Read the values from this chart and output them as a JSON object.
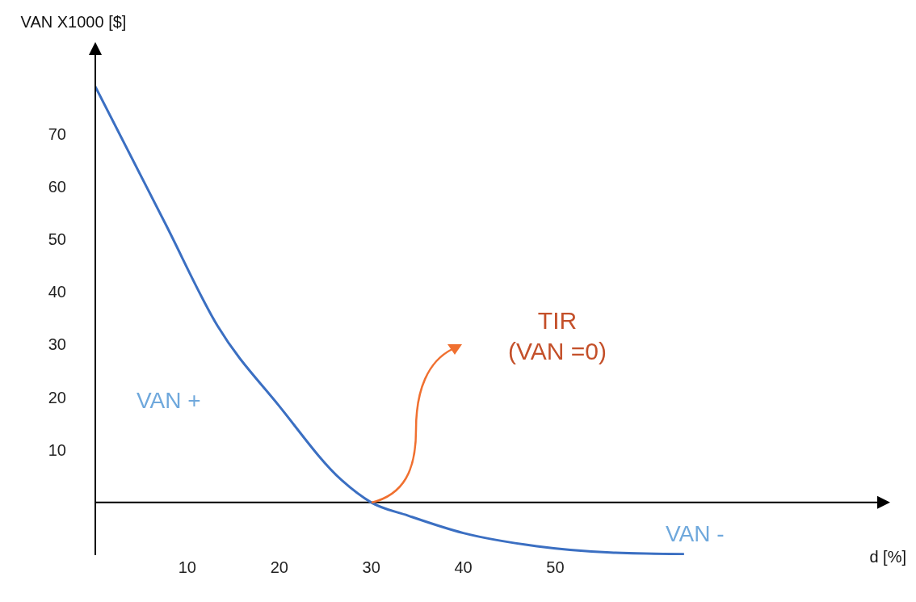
{
  "chart_data": {
    "type": "line",
    "xlabel": "d [%]",
    "ylabel": "VAN X1000 [$]",
    "x": [
      0,
      7.6,
      13.3,
      20,
      26.8,
      30,
      34,
      40,
      48,
      56,
      64
    ],
    "series": [
      {
        "color": "#3b6fc2",
        "values": [
          79,
          53,
          33.5,
          18.3,
          4.2,
          0,
          -2.5,
          -5.8,
          -8.3,
          -9.5,
          -9.8
        ]
      }
    ],
    "xlim": [
      0,
      85
    ],
    "xticks": [
      10,
      20,
      30,
      40,
      50
    ],
    "ylim": [
      -10,
      85
    ],
    "yticks": [
      10,
      20,
      30,
      40,
      50,
      60,
      70
    ],
    "grid": false,
    "legend": false,
    "marker": "none",
    "line_style": "solid",
    "annotations": [
      "VAN +",
      "VAN -",
      "TIR (VAN =0)"
    ]
  }
}
